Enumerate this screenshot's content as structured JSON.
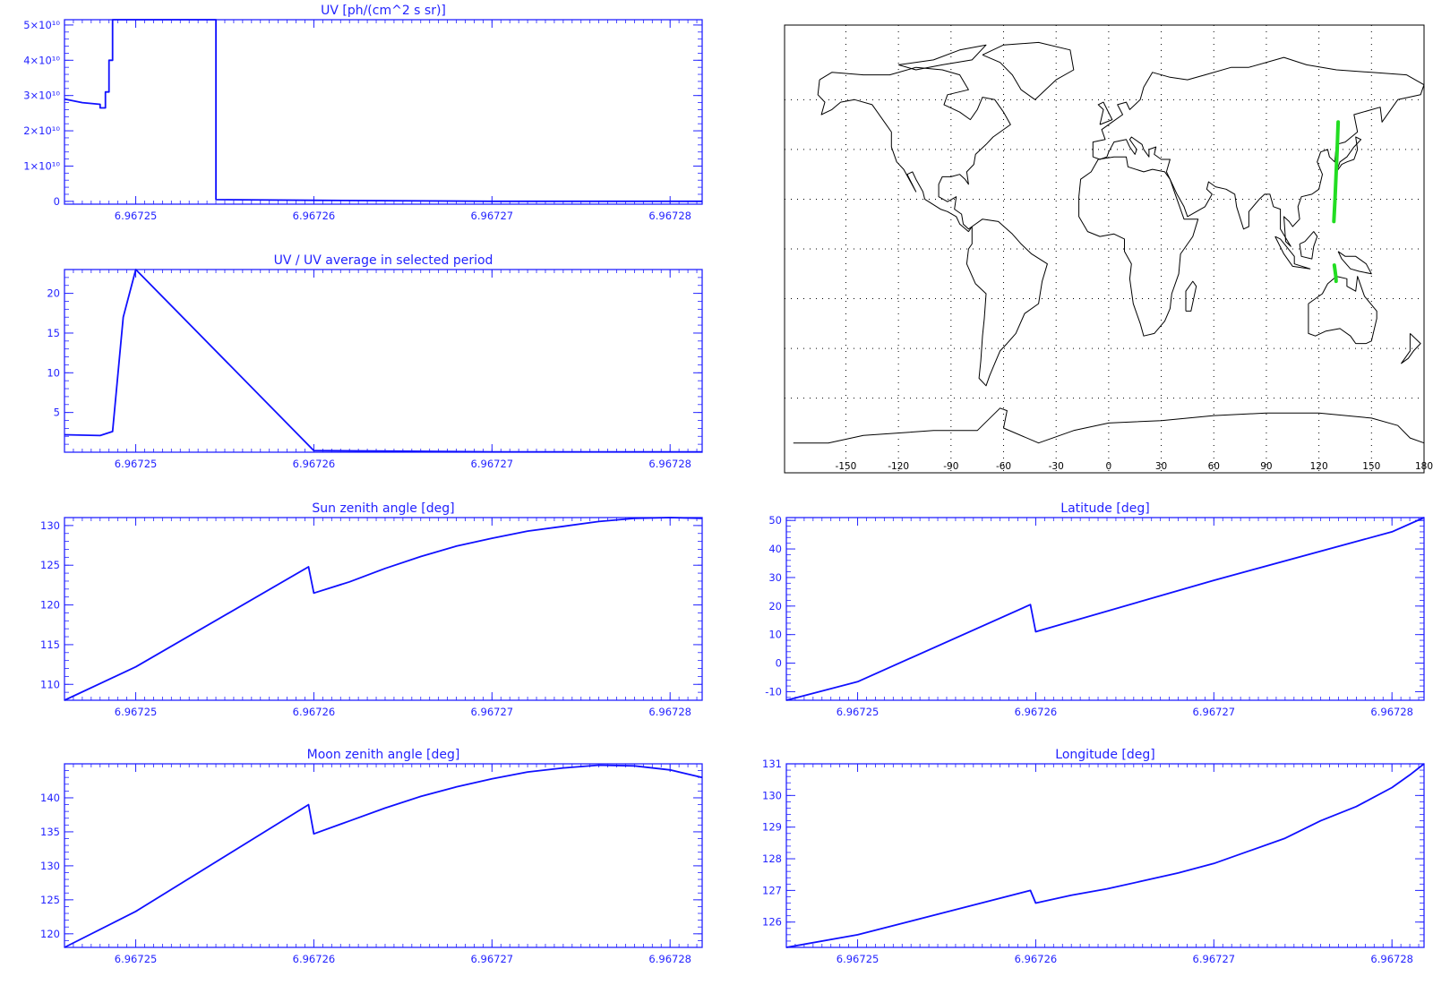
{
  "colors": {
    "axis": "#2323ff",
    "line": "#1010ff",
    "track": "#22dd22",
    "map": "#000000"
  },
  "chart_data": [
    {
      "type": "line",
      "title": "UV [ph/(cm^2 s sr)]",
      "xticks": [
        "6.96725",
        "6.96726",
        "6.96727",
        "6.96728"
      ],
      "xtick_values": [
        6.96725,
        6.96726,
        6.96727,
        6.96728
      ],
      "xlim": [
        6.967246,
        6.9672818
      ],
      "yticks": [
        "5×10¹⁰",
        "4×10¹⁰",
        "3×10¹⁰",
        "2×10¹⁰",
        "1×10¹⁰",
        "0"
      ],
      "ytick_values": [
        50000000000,
        40000000000,
        30000000000,
        20000000000,
        10000000000,
        0
      ],
      "ylim": [
        -800000000,
        51500000000
      ],
      "step": true,
      "series": [
        {
          "x": [
            6.967246,
            6.967247,
            6.967248,
            6.967248,
            6.9672483,
            6.9672483,
            6.9672485,
            6.9672485,
            6.9672487,
            6.9672487,
            6.967249,
            6.967249,
            6.9672545,
            6.9672545,
            6.96726,
            6.96727,
            6.9672818
          ],
          "y": [
            29000000000,
            28000000000,
            27500000000,
            26500000000,
            26500000000,
            31000000000,
            31000000000,
            40000000000,
            40000000000,
            51500000000,
            51500000000,
            51500000000,
            51500000000,
            500000000,
            300000000,
            0,
            0
          ]
        }
      ]
    },
    {
      "type": "line",
      "title": "UV / UV average in selected period",
      "xticks": [
        "6.96725",
        "6.96726",
        "6.96727",
        "6.96728"
      ],
      "xtick_values": [
        6.96725,
        6.96726,
        6.96727,
        6.96728
      ],
      "xlim": [
        6.967246,
        6.9672818
      ],
      "yticks": [
        "20",
        "15",
        "10",
        "5"
      ],
      "ytick_values": [
        20,
        15,
        10,
        5
      ],
      "ylim": [
        0,
        23
      ],
      "series": [
        {
          "x": [
            6.967246,
            6.967248,
            6.9672487,
            6.9672493,
            6.96725,
            6.96726,
            6.96727,
            6.9672818
          ],
          "y": [
            2.2,
            2.1,
            2.6,
            17,
            23,
            0.2,
            0.05,
            0.05
          ]
        }
      ]
    },
    {
      "type": "line",
      "title": "Sun zenith angle [deg]",
      "xticks": [
        "6.96725",
        "6.96726",
        "6.96727",
        "6.96728"
      ],
      "xtick_values": [
        6.96725,
        6.96726,
        6.96727,
        6.96728
      ],
      "xlim": [
        6.967246,
        6.9672818
      ],
      "yticks": [
        "130",
        "125",
        "120",
        "115",
        "110"
      ],
      "ytick_values": [
        130,
        125,
        120,
        115,
        110
      ],
      "ylim": [
        108,
        131
      ],
      "series": [
        {
          "x": [
            6.967246,
            6.96725,
            6.9672597,
            6.96726,
            6.967262,
            6.967264,
            6.967266,
            6.967268,
            6.96727,
            6.967272,
            6.967274,
            6.967276,
            6.967278,
            6.96728,
            6.9672818
          ],
          "y": [
            108,
            112.2,
            124.8,
            121.5,
            122.9,
            124.6,
            126.1,
            127.4,
            128.4,
            129.3,
            129.9,
            130.5,
            130.9,
            131,
            130.9
          ]
        }
      ]
    },
    {
      "type": "line",
      "title": "Moon zenith angle [deg]",
      "xticks": [
        "6.96725",
        "6.96726",
        "6.96727",
        "6.96728"
      ],
      "xtick_values": [
        6.96725,
        6.96726,
        6.96727,
        6.96728
      ],
      "xlim": [
        6.967246,
        6.9672818
      ],
      "yticks": [
        "140",
        "135",
        "130",
        "125",
        "120"
      ],
      "ytick_values": [
        140,
        135,
        130,
        125,
        120
      ],
      "ylim": [
        118,
        145
      ],
      "series": [
        {
          "x": [
            6.967246,
            6.96725,
            6.9672597,
            6.96726,
            6.967262,
            6.967264,
            6.967266,
            6.967268,
            6.96727,
            6.967272,
            6.967274,
            6.967276,
            6.967278,
            6.96728,
            6.9672818
          ],
          "y": [
            118,
            123.3,
            139,
            134.7,
            136.6,
            138.5,
            140.2,
            141.6,
            142.8,
            143.8,
            144.4,
            144.8,
            144.7,
            144.1,
            143
          ]
        }
      ]
    },
    {
      "type": "line",
      "title": "Latitude [deg]",
      "xticks": [
        "6.96725",
        "6.96726",
        "6.96727",
        "6.96728"
      ],
      "xtick_values": [
        6.96725,
        6.96726,
        6.96727,
        6.96728
      ],
      "xlim": [
        6.967246,
        6.9672818
      ],
      "yticks": [
        "50",
        "40",
        "30",
        "20",
        "10",
        "0",
        "-10"
      ],
      "ytick_values": [
        50,
        40,
        30,
        20,
        10,
        0,
        -10
      ],
      "ylim": [
        -13,
        51
      ],
      "series": [
        {
          "x": [
            6.967246,
            6.96725,
            6.9672597,
            6.96726,
            6.96727,
            6.96728,
            6.9672818
          ],
          "y": [
            -13,
            -6.5,
            20.5,
            11,
            29,
            46,
            51
          ]
        }
      ]
    },
    {
      "type": "line",
      "title": "Longitude [deg]",
      "xticks": [
        "6.96725",
        "6.96726",
        "6.96727",
        "6.96728"
      ],
      "xtick_values": [
        6.96725,
        6.96726,
        6.96727,
        6.96728
      ],
      "xlim": [
        6.967246,
        6.9672818
      ],
      "yticks": [
        "131",
        "130",
        "129",
        "128",
        "127",
        "126"
      ],
      "ytick_values": [
        131,
        130,
        129,
        128,
        127,
        126
      ],
      "ylim": [
        125.2,
        131
      ],
      "series": [
        {
          "x": [
            6.967246,
            6.96725,
            6.9672597,
            6.96726,
            6.967262,
            6.967264,
            6.967266,
            6.967268,
            6.96727,
            6.967272,
            6.967274,
            6.967276,
            6.967278,
            6.96728,
            6.967281,
            6.9672818
          ],
          "y": [
            125.2,
            125.6,
            127,
            126.6,
            126.85,
            127.05,
            127.3,
            127.55,
            127.85,
            128.25,
            128.65,
            129.2,
            129.65,
            130.25,
            130.65,
            131
          ]
        }
      ]
    }
  ],
  "map": {
    "xticks": [
      "-150",
      "-120",
      "-90",
      "-60",
      "-30",
      "0",
      "30",
      "60",
      "90",
      "120",
      "150",
      "180"
    ],
    "xtick_values": [
      -150,
      -120,
      -90,
      -60,
      -30,
      0,
      30,
      60,
      90,
      120,
      150,
      180
    ],
    "xlim": [
      -185,
      180
    ],
    "ylim": [
      -90,
      90
    ],
    "track": [
      {
        "lon": [
          129.8,
          129.7,
          129.5,
          129.2,
          128.8
        ],
        "lat": [
          -13,
          -11.6,
          -10.2,
          -8.6,
          -6.5
        ]
      },
      {
        "lon": [
          128.5,
          129.2,
          129.8,
          130.4,
          131.0
        ],
        "lat": [
          11,
          20,
          30,
          40,
          51
        ]
      }
    ]
  }
}
